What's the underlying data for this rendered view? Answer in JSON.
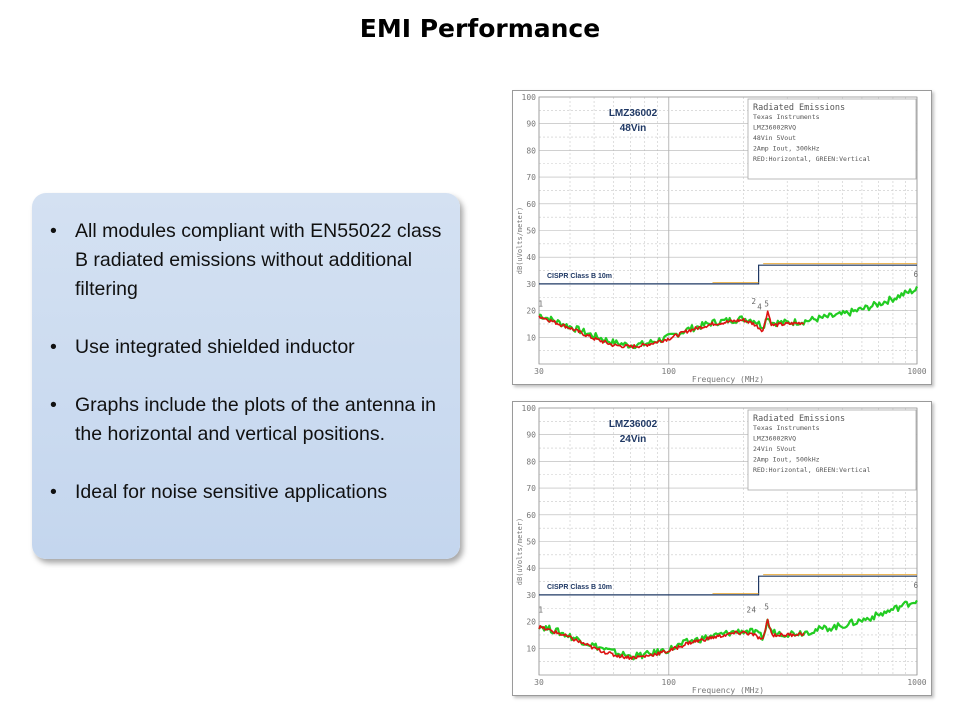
{
  "slide": {
    "title": "EMI Performance",
    "bullet_glyph": "•",
    "bullets": [
      "All modules compliant with EN55022 class B radiated emissions without additional filtering",
      "Use integrated shielded inductor",
      "Graphs include the plots of the antenna in the horizontal and vertical positions.",
      "Ideal for noise sensitive applications"
    ]
  },
  "colors": {
    "accent_text": "#1f3864",
    "limit_line": "#1f3864",
    "limit_orange": "#e8a020",
    "vertical": "#22cc22",
    "horizontal": "#dd1111",
    "grid": "#c8c8c8",
    "axis_text": "#777777"
  },
  "chart_data": [
    {
      "type": "line",
      "label_line1": "LMZ36002",
      "label_line2": "48Vin",
      "legend_lines": [
        "Radiated Emissions",
        "Texas Instruments",
        "LMZ36002RVQ",
        "48Vin 5Vout",
        "2Amp Iout, 300kHz",
        "RED:Horizontal, GREEN:Vertical"
      ],
      "limit_label": "CISPR Class B 10m",
      "xlabel": "Frequency (MHz)",
      "ylabel": "dB(uVolts/meter)",
      "x_scale": "log",
      "xlim": [
        30,
        1000
      ],
      "ylim": [
        0,
        100
      ],
      "x_ticks": [
        30,
        100,
        1000
      ],
      "y_ticks": [
        10,
        20,
        30,
        40,
        50,
        60,
        70,
        80,
        90,
        100
      ],
      "limit": [
        {
          "x": 30,
          "y": 30
        },
        {
          "x": 230,
          "y": 30
        },
        {
          "x": 230,
          "y": 37
        },
        {
          "x": 1000,
          "y": 37
        }
      ],
      "marker_labels": [
        {
          "text": "1",
          "x": 30.5,
          "y": 20
        },
        {
          "text": "2",
          "x": 220,
          "y": 21
        },
        {
          "text": "4",
          "x": 232,
          "y": 19
        },
        {
          "text": "5",
          "x": 248,
          "y": 20
        },
        {
          "text": "6",
          "x": 990,
          "y": 31
        }
      ],
      "series": [
        {
          "name": "Vertical",
          "color": "green",
          "x": [
            30,
            35,
            40,
            50,
            60,
            70,
            80,
            100,
            120,
            150,
            180,
            200,
            220,
            240,
            250,
            260,
            300,
            350,
            400,
            500,
            600,
            700,
            800,
            900,
            1000
          ],
          "y": [
            18.5,
            16,
            14,
            10.5,
            8,
            7,
            7.5,
            10,
            13,
            15.5,
            16.5,
            17,
            16.5,
            14,
            18,
            15.5,
            15.5,
            16,
            17,
            18.5,
            20.5,
            22.5,
            24.5,
            26.5,
            28
          ]
        },
        {
          "name": "Horizontal",
          "color": "red",
          "x": [
            30,
            35,
            40,
            50,
            60,
            70,
            80,
            100,
            120,
            150,
            180,
            200,
            220,
            240,
            250,
            260,
            300,
            350
          ],
          "y": [
            18,
            15.5,
            13.5,
            9.5,
            7,
            6.5,
            7,
            9.5,
            12.5,
            15,
            16,
            16.5,
            15,
            12.5,
            20,
            14.5,
            15,
            15.5
          ]
        }
      ]
    },
    {
      "type": "line",
      "label_line1": "LMZ36002",
      "label_line2": "24Vin",
      "legend_lines": [
        "Radiated Emissions",
        "Texas Instruments",
        "LMZ36002RVQ",
        "24Vin 5Vout",
        "2Amp Iout, 500kHz",
        "RED:Horizontal, GREEN:Vertical"
      ],
      "limit_label": "CISPR Class B 10m",
      "xlabel": "Frequency (MHz)",
      "ylabel": "dB(uVolts/meter)",
      "x_scale": "log",
      "xlim": [
        30,
        1000
      ],
      "ylim": [
        0,
        100
      ],
      "x_ticks": [
        30,
        100,
        1000
      ],
      "y_ticks": [
        10,
        20,
        30,
        40,
        50,
        60,
        70,
        80,
        90,
        100
      ],
      "limit": [
        {
          "x": 30,
          "y": 30
        },
        {
          "x": 230,
          "y": 30
        },
        {
          "x": 230,
          "y": 37
        },
        {
          "x": 1000,
          "y": 37
        }
      ],
      "marker_labels": [
        {
          "text": "1",
          "x": 30.5,
          "y": 22
        },
        {
          "text": "2",
          "x": 210,
          "y": 22
        },
        {
          "text": "4",
          "x": 220,
          "y": 22
        },
        {
          "text": "5",
          "x": 248,
          "y": 23
        },
        {
          "text": "6",
          "x": 990,
          "y": 31
        }
      ],
      "series": [
        {
          "name": "Vertical",
          "color": "green",
          "x": [
            30,
            35,
            40,
            50,
            60,
            70,
            80,
            100,
            120,
            150,
            180,
            200,
            220,
            240,
            250,
            260,
            300,
            350,
            400,
            500,
            600,
            700,
            800,
            900,
            1000
          ],
          "y": [
            18.5,
            16.5,
            14.5,
            11,
            8.5,
            7,
            7.5,
            9.5,
            12.5,
            14.5,
            16,
            16.5,
            16,
            14,
            20,
            16,
            15.5,
            16,
            17,
            18.5,
            20.5,
            22.5,
            24.5,
            26.5,
            28
          ]
        },
        {
          "name": "Horizontal",
          "color": "red",
          "x": [
            30,
            35,
            40,
            50,
            60,
            70,
            80,
            100,
            120,
            150,
            180,
            200,
            220,
            240,
            250,
            260,
            300,
            350
          ],
          "y": [
            18,
            16,
            14,
            10,
            7.5,
            6.5,
            7,
            9,
            12,
            14,
            15.5,
            16,
            15,
            13,
            21,
            15,
            15,
            15.5
          ]
        }
      ]
    }
  ]
}
